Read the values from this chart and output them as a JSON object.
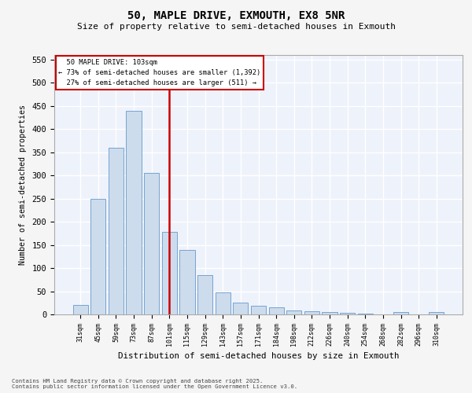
{
  "title_line1": "50, MAPLE DRIVE, EXMOUTH, EX8 5NR",
  "title_line2": "Size of property relative to semi-detached houses in Exmouth",
  "xlabel": "Distribution of semi-detached houses by size in Exmouth",
  "ylabel": "Number of semi-detached properties",
  "categories": [
    "31sqm",
    "45sqm",
    "59sqm",
    "73sqm",
    "87sqm",
    "101sqm",
    "115sqm",
    "129sqm",
    "143sqm",
    "157sqm",
    "171sqm",
    "184sqm",
    "198sqm",
    "212sqm",
    "226sqm",
    "240sqm",
    "254sqm",
    "268sqm",
    "282sqm",
    "296sqm",
    "310sqm"
  ],
  "bar_heights": [
    20,
    250,
    360,
    440,
    305,
    178,
    140,
    85,
    47,
    25,
    18,
    15,
    9,
    6,
    5,
    4,
    1,
    0,
    5,
    0,
    5
  ],
  "property_label": "50 MAPLE DRIVE: 103sqm",
  "pct_smaller": 73,
  "pct_larger": 27,
  "count_smaller": "1,392",
  "count_larger": "511",
  "vline_idx": 5,
  "bar_color": "#ccdcec",
  "bar_edge_color": "#6699cc",
  "vline_color": "#cc0000",
  "annotation_box_edge": "#cc0000",
  "background_color": "#eef2fb",
  "grid_color": "#ffffff",
  "ylim_max": 560,
  "yticks": [
    0,
    50,
    100,
    150,
    200,
    250,
    300,
    350,
    400,
    450,
    500,
    550
  ],
  "footer_line1": "Contains HM Land Registry data © Crown copyright and database right 2025.",
  "footer_line2": "Contains public sector information licensed under the Open Government Licence v3.0."
}
